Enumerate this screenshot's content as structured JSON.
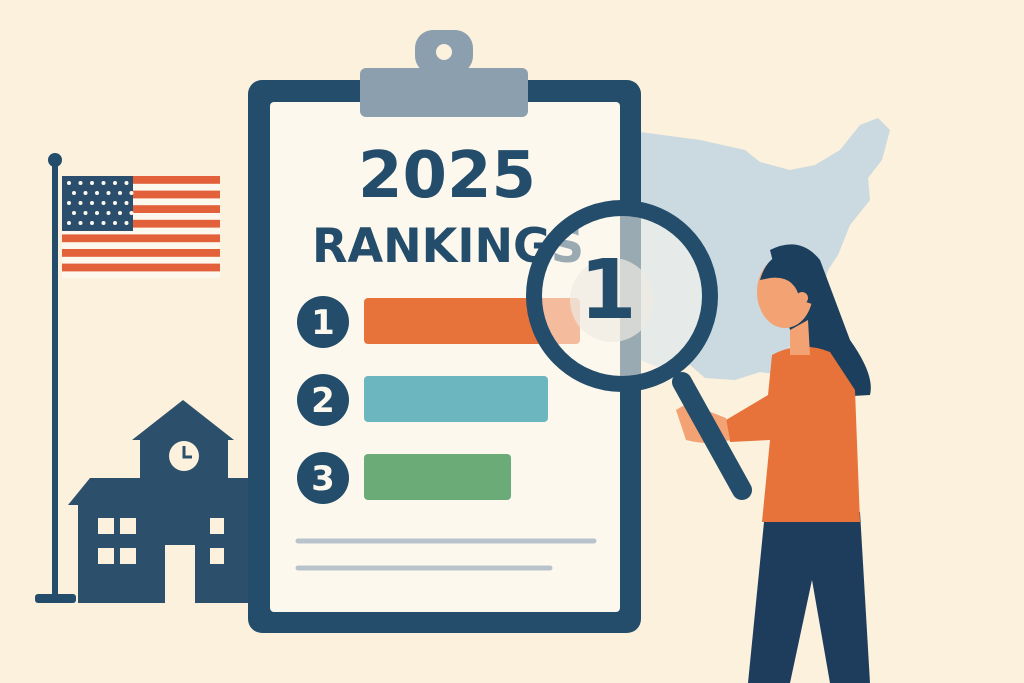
{
  "clipboard": {
    "year": "2025",
    "heading": "RANKINGS",
    "ranks": [
      {
        "number": "1",
        "color": "#e8733a"
      },
      {
        "number": "2",
        "color": "#6cb6bf"
      },
      {
        "number": "3",
        "color": "#6aab78"
      }
    ]
  },
  "magnifier": {
    "number": "1"
  },
  "colors": {
    "background": "#fbf1dc",
    "navy": "#234d6a",
    "paper": "#fdf8ee",
    "clip": "#8c9fae",
    "map": "#cbd9e0",
    "flag_red": "#e2603a"
  },
  "icons": [
    "us-flag-icon",
    "school-building-icon",
    "clock-icon",
    "us-map-icon",
    "magnifying-glass-icon",
    "person-icon",
    "clipboard-icon"
  ]
}
